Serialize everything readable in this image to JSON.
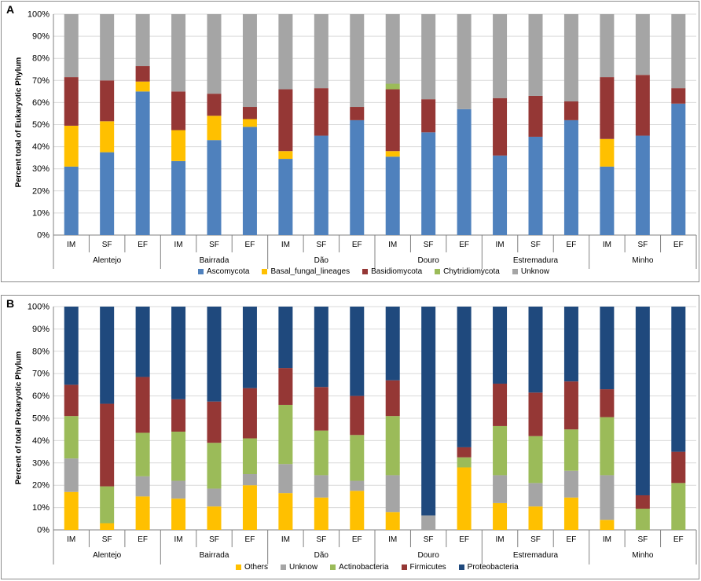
{
  "chart_data": [
    {
      "panel": "A",
      "type": "bar",
      "stacked": true,
      "percent": true,
      "ylabel": "Percent total of Eukaryotic Phylum",
      "ylim": [
        0,
        100
      ],
      "yticks": [
        "0%",
        "10%",
        "20%",
        "30%",
        "40%",
        "50%",
        "60%",
        "70%",
        "80%",
        "90%",
        "100%"
      ],
      "categories": [
        "IM",
        "SF",
        "EF",
        "IM",
        "SF",
        "EF",
        "IM",
        "SF",
        "EF",
        "IM",
        "SF",
        "EF",
        "IM",
        "SF",
        "EF",
        "IM",
        "SF",
        "EF"
      ],
      "groups": [
        "Alentejo",
        "Bairrada",
        "Dão",
        "Douro",
        "Estremadura",
        "Minho"
      ],
      "legend_position": "bottom",
      "series": [
        {
          "name": "Ascomycota",
          "color": "#4f81bd",
          "values": [
            31,
            37.5,
            65,
            33.5,
            43,
            49,
            34.5,
            45,
            52,
            35.5,
            46.5,
            57,
            36,
            44.5,
            52,
            31,
            45,
            59.5
          ]
        },
        {
          "name": "Basal_fungal_lineages",
          "color": "#ffc000",
          "values": [
            18.5,
            14,
            4.5,
            14,
            11,
            3.5,
            3.5,
            0,
            0,
            2.5,
            0,
            0,
            0,
            0,
            0,
            12.5,
            0,
            0
          ]
        },
        {
          "name": "Basidiomycota",
          "color": "#953735",
          "values": [
            22,
            18.5,
            7,
            17.5,
            10,
            5.5,
            28,
            21.5,
            6,
            28,
            15,
            0,
            26,
            18.5,
            8.5,
            28,
            27.5,
            7
          ]
        },
        {
          "name": "Chytridiomycota",
          "color": "#9bbb59",
          "values": [
            0,
            0,
            0,
            0,
            0,
            0,
            0,
            0,
            0,
            2.5,
            0,
            0,
            0,
            0,
            0,
            0,
            0,
            0
          ]
        },
        {
          "name": "Unknow",
          "color": "#a5a5a5",
          "values": [
            28.5,
            30,
            23.5,
            35,
            36,
            42,
            34,
            33.5,
            42,
            31.5,
            38.5,
            43,
            38,
            37,
            39.5,
            28.5,
            27.5,
            33.5
          ]
        }
      ]
    },
    {
      "panel": "B",
      "type": "bar",
      "stacked": true,
      "percent": true,
      "ylabel": "Percent of total Prokaryotic Phylum",
      "ylim": [
        0,
        100
      ],
      "yticks": [
        "0%",
        "10%",
        "20%",
        "30%",
        "40%",
        "50%",
        "60%",
        "70%",
        "80%",
        "90%",
        "100%"
      ],
      "categories": [
        "IM",
        "SF",
        "EF",
        "IM",
        "SF",
        "EF",
        "IM",
        "SF",
        "EF",
        "IM",
        "SF",
        "EF",
        "IM",
        "SF",
        "EF",
        "IM",
        "SF",
        "EF"
      ],
      "groups": [
        "Alentejo",
        "Bairrada",
        "Dão",
        "Douro",
        "Estremadura",
        "Minho"
      ],
      "legend_position": "bottom",
      "series": [
        {
          "name": "Others",
          "color": "#ffc000",
          "values": [
            17,
            3,
            15,
            14,
            10.5,
            20,
            16.5,
            14.5,
            17.5,
            8,
            0,
            28,
            12,
            10.5,
            14.5,
            4.5,
            0,
            0
          ]
        },
        {
          "name": "Unknow",
          "color": "#a5a5a5",
          "values": [
            15,
            0,
            9,
            8,
            8,
            5,
            13,
            10,
            4.5,
            16.5,
            6.5,
            0,
            12.5,
            10.5,
            12,
            20,
            0,
            0
          ]
        },
        {
          "name": "Actinobacteria",
          "color": "#9bbb59",
          "values": [
            19,
            16.5,
            19.5,
            22,
            20.5,
            16,
            26.5,
            20,
            20.5,
            26.5,
            0,
            4.5,
            22,
            21,
            18.5,
            26,
            9.5,
            21
          ]
        },
        {
          "name": "Firmicutes",
          "color": "#953735",
          "values": [
            14,
            37,
            25,
            14.5,
            18.5,
            22.5,
            16.5,
            19.5,
            17.5,
            16,
            0,
            4.5,
            19,
            19.5,
            21.5,
            12.5,
            6,
            14
          ]
        },
        {
          "name": "Proteobacteria",
          "color": "#1f497d",
          "values": [
            35,
            43.5,
            31.5,
            41.5,
            42.5,
            36.5,
            27.5,
            36,
            40,
            33,
            93.5,
            63,
            34.5,
            38.5,
            33.5,
            37,
            84.5,
            65
          ]
        }
      ]
    }
  ]
}
